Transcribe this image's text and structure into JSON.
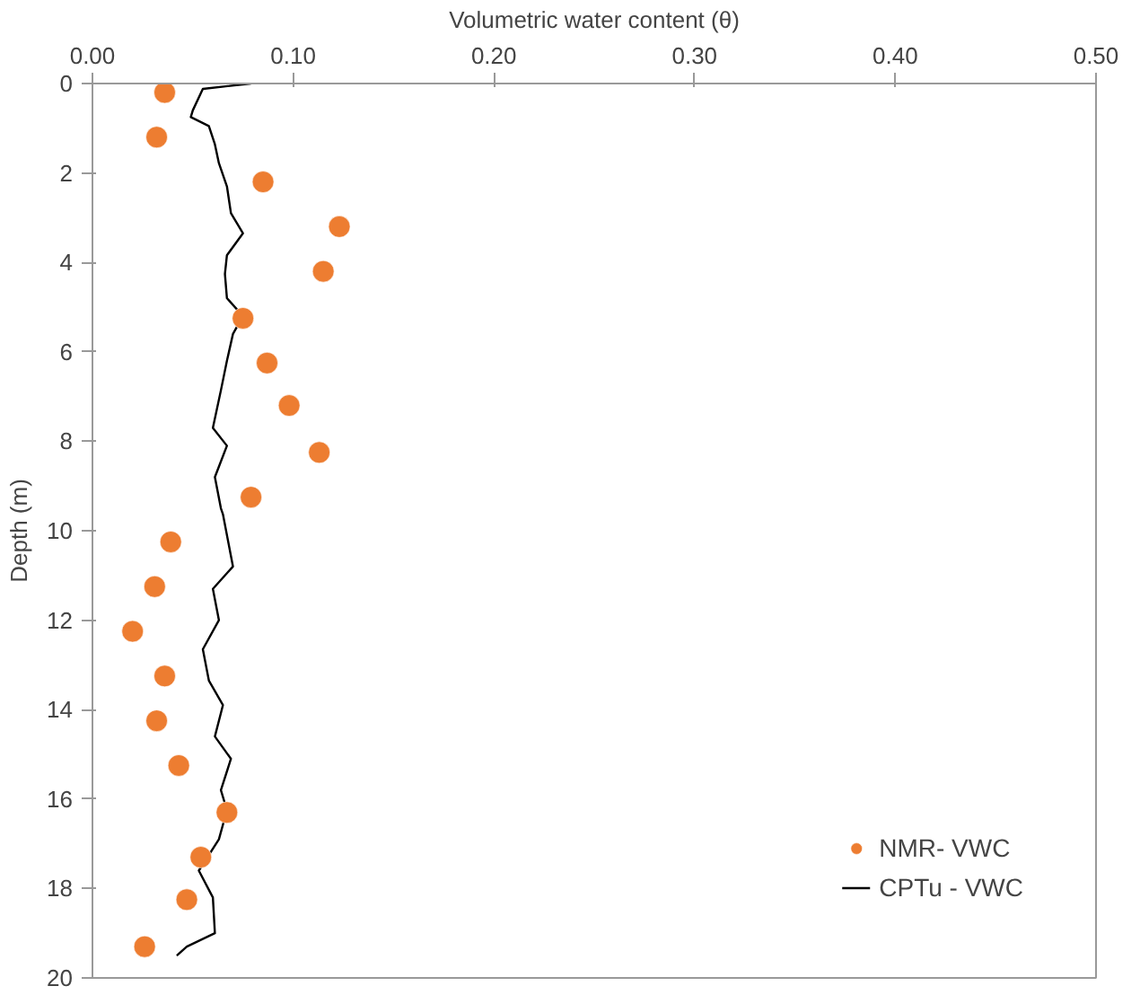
{
  "chart_data": {
    "type": "scatter",
    "xlabel": "Volumetric water content (θ)",
    "ylabel": "Depth (m)",
    "xlim": [
      0,
      0.5
    ],
    "xticks": [
      {
        "value": 0,
        "label": "0.00"
      },
      {
        "value": 0.1,
        "label": "0.10"
      },
      {
        "value": 0.2,
        "label": "0.20"
      },
      {
        "value": 0.3,
        "label": "0.30"
      },
      {
        "value": 0.4,
        "label": "0.40"
      },
      {
        "value": 0.5,
        "label": "0.50"
      }
    ],
    "ylim": [
      20,
      0
    ],
    "yticks": [
      0,
      2,
      4,
      6,
      8,
      10,
      12,
      14,
      16,
      18,
      20
    ],
    "grid": false,
    "legend": "bottom right",
    "series": [
      {
        "name": "NMR- VWC",
        "marker": "circle",
        "color": "#ed7d31",
        "x": [
          0.036,
          0.032,
          0.085,
          0.123,
          0.115,
          0.075,
          0.087,
          0.098,
          0.113,
          0.079,
          0.039,
          0.031,
          0.02,
          0.036,
          0.032,
          0.043,
          0.067,
          0.054,
          0.047,
          0.026
        ],
        "values": [
          0.2,
          1.2,
          2.2,
          3.2,
          4.2,
          5.25,
          6.25,
          7.2,
          8.25,
          9.25,
          10.25,
          11.25,
          12.25,
          13.25,
          14.25,
          15.25,
          16.3,
          17.3,
          18.25,
          19.3
        ]
      },
      {
        "name": "CPTu - VWC",
        "type": "line",
        "marker": "none",
        "color": "#000000",
        "x": [
          0.079,
          0.055,
          0.05,
          0.049,
          0.058,
          0.061,
          0.063,
          0.067,
          0.069,
          0.075,
          0.067,
          0.066,
          0.067,
          0.075,
          0.07,
          0.067,
          0.064,
          0.06,
          0.067,
          0.061,
          0.064,
          0.065,
          0.07,
          0.06,
          0.063,
          0.055,
          0.058,
          0.065,
          0.061,
          0.069,
          0.064,
          0.067,
          0.063,
          0.053,
          0.06,
          0.061,
          0.047,
          0.042
        ],
        "values": [
          0,
          0.12,
          0.6,
          0.75,
          0.95,
          1.36,
          1.78,
          2.3,
          2.9,
          3.35,
          3.84,
          4.26,
          4.8,
          5.2,
          5.6,
          6.2,
          6.86,
          7.7,
          8.1,
          8.8,
          9.5,
          9.63,
          10.8,
          11.3,
          12.0,
          12.65,
          13.35,
          13.9,
          14.6,
          15.1,
          15.8,
          16.25,
          16.9,
          17.6,
          18.2,
          19.0,
          19.3,
          19.5
        ]
      }
    ]
  }
}
